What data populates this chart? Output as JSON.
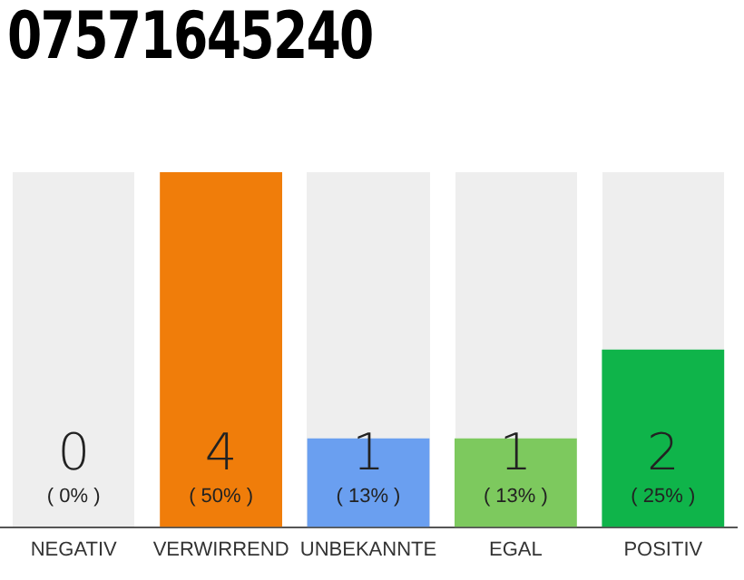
{
  "chart_data": {
    "type": "bar",
    "title": "07571645240",
    "categories": [
      "NEGATIV",
      "VERWIRREND",
      "UNBEKANNTE",
      "EGAL",
      "POSITIV"
    ],
    "values": [
      0,
      4,
      1,
      1,
      2
    ],
    "colors": [
      "#6a9ff0",
      "#f07d0a",
      "#6a9ff0",
      "#7dc95e",
      "#0fb44a"
    ],
    "data_labels": true,
    "annotations": [
      "( 0% )",
      "( 50% )",
      "( 13% )",
      "( 13% )",
      "( 25% )"
    ],
    "grid": false,
    "legend": false,
    "tick_labels": "x"
  }
}
